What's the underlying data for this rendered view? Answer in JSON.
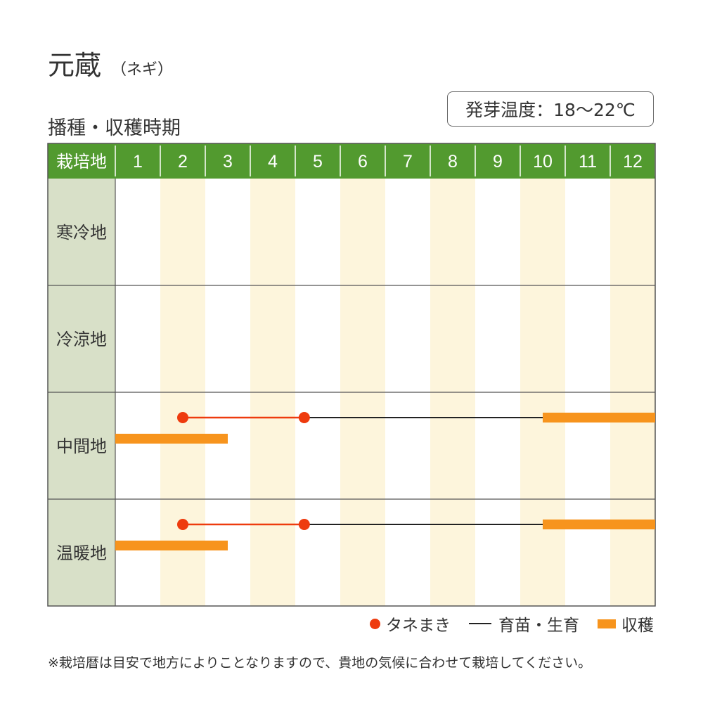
{
  "title": {
    "main": "元蔵",
    "sub": "（ネギ）"
  },
  "section_title": "播種・収穫時期",
  "temperature_note": "発芽温度：18～22℃",
  "colors": {
    "header_green": "#529a2f",
    "label_bg": "#d8e0c8",
    "stripe": "#fdf5dc",
    "sowing_red": "#ee3b0e",
    "harvest_orange": "#f7941d",
    "growing_line": "#222222"
  },
  "chart_data": {
    "type": "table",
    "header_label": "栽培地",
    "months": [
      "1",
      "2",
      "3",
      "4",
      "5",
      "6",
      "7",
      "8",
      "9",
      "10",
      "11",
      "12"
    ],
    "regions": [
      {
        "name": "寒冷地",
        "sowing": [],
        "growing": [],
        "harvest": []
      },
      {
        "name": "冷涼地",
        "sowing": [],
        "growing": [],
        "harvest": []
      },
      {
        "name": "中間地",
        "sowing": [
          [
            2.5,
            5.2
          ]
        ],
        "growing": [
          [
            5.2,
            10.5
          ]
        ],
        "harvest": [
          [
            10.5,
            13.0
          ],
          [
            1.0,
            3.5
          ]
        ]
      },
      {
        "name": "温暖地",
        "sowing": [
          [
            2.5,
            5.2
          ]
        ],
        "growing": [
          [
            5.2,
            10.5
          ]
        ],
        "harvest": [
          [
            10.5,
            13.0
          ],
          [
            1.0,
            3.5
          ]
        ]
      }
    ]
  },
  "legend": {
    "sowing": "タネまき",
    "growing": "育苗・生育",
    "harvest": "収穫"
  },
  "footnote": "※栽培暦は目安で地方によりことなりますので、貴地の気候に合わせて栽培してください。"
}
